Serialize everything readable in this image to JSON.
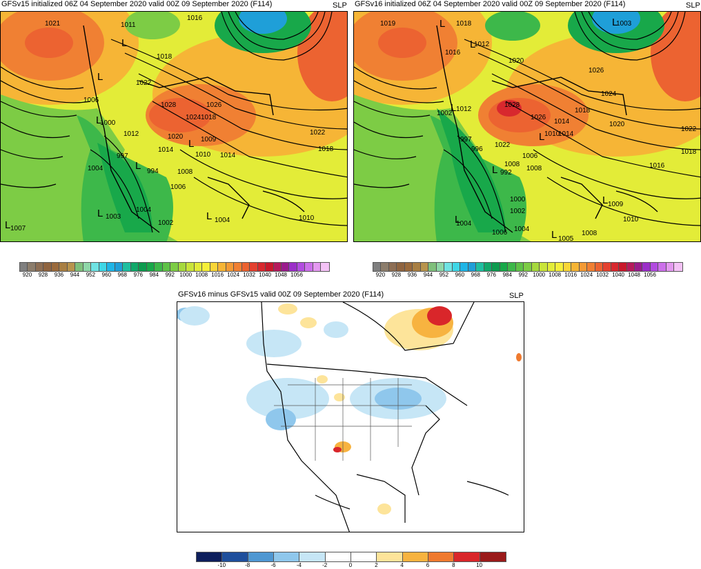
{
  "panels": {
    "gfsv15": {
      "title": "GFSv15 initialized 06Z 04 September 2020 valid 00Z 09 September 2020 (F114)",
      "variable": "SLP",
      "isobar_labels": [
        "1021",
        "1011",
        "1016",
        "1018",
        "1022",
        "1006",
        "1000",
        "1012",
        "1028",
        "1026",
        "1024",
        "1020",
        "1018",
        "1014",
        "1009",
        "1010",
        "1014",
        "1022",
        "1018",
        "1004",
        "997",
        "994",
        "1008",
        "1006",
        "1004",
        "1002",
        "1003",
        "1004",
        "1010",
        "1007"
      ],
      "low_markers": [
        "L",
        "L",
        "L",
        "L",
        "L",
        "L",
        "L",
        "L"
      ]
    },
    "gfsv16": {
      "title": "GFSv16 initialized 06Z 04 September 2020 valid 00Z 09 September 2020 (F114)",
      "variable": "SLP",
      "isobar_labels": [
        "1019",
        "1018",
        "1012",
        "1016",
        "1020",
        "1026",
        "1024",
        "1028",
        "1026",
        "1018",
        "1014",
        "1012",
        "1008",
        "1002",
        "997",
        "996",
        "1022",
        "1006",
        "1014",
        "1010",
        "1020",
        "1022",
        "1018",
        "1016",
        "992",
        "1008",
        "1000",
        "1002",
        "1004",
        "1006",
        "1005",
        "1008",
        "1009",
        "1010",
        "1004",
        "1003"
      ],
      "low_markers": [
        "L",
        "L",
        "L",
        "L",
        "L",
        "L",
        "L",
        "L",
        "L"
      ]
    },
    "diff": {
      "title": "GFSv16 minus GFSv15 valid 00Z 09 September 2020 (F114)",
      "variable": "SLP"
    }
  },
  "colorbar_slp": {
    "labels": [
      "920",
      "928",
      "936",
      "944",
      "952",
      "960",
      "968",
      "976",
      "984",
      "992",
      "1000",
      "1008",
      "1016",
      "1024",
      "1032",
      "1040",
      "1048",
      "1056"
    ],
    "colors": [
      "#7f7f7f",
      "#8c7d6c",
      "#8d6e54",
      "#8f6440",
      "#9a6a3c",
      "#a87f43",
      "#b8944d",
      "#7fbf7b",
      "#8fd7a8",
      "#6fe3e3",
      "#3fd7e6",
      "#1fb5e6",
      "#1f9fd8",
      "#1fbfa0",
      "#11a86a",
      "#0d9b4f",
      "#18a84a",
      "#3db84a",
      "#5fc247",
      "#7dcc45",
      "#a6d93e",
      "#c9e43a",
      "#e3ec38",
      "#f5ef3a",
      "#f9d637",
      "#f6b536",
      "#f39a35",
      "#f08033",
      "#ec6331",
      "#e44230",
      "#d8282e",
      "#c8182b",
      "#b51a5c",
      "#9a1b8c",
      "#9b2fc8",
      "#b24ce0",
      "#cc70ea",
      "#e499f0",
      "#f4c2f6"
    ]
  },
  "colorbar_diff": {
    "labels": [
      "-10",
      "-8",
      "-6",
      "-4",
      "-2",
      "0",
      "2",
      "4",
      "6",
      "8",
      "10"
    ],
    "colors": [
      "#0e1f5c",
      "#1f4f9c",
      "#4f97d2",
      "#8fc7ec",
      "#c6e6f6",
      "#ffffff",
      "#ffffff",
      "#fde49a",
      "#f7b340",
      "#ef7a2f",
      "#d9262a",
      "#9a1a1a"
    ]
  }
}
